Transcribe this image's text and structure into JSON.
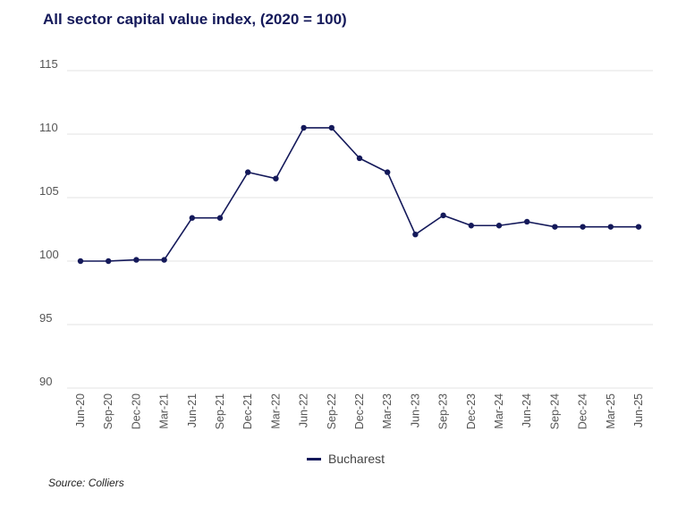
{
  "title": "All sector capital value index, (2020 = 100)",
  "source": "Source: Colliers",
  "chart_data": {
    "type": "line",
    "title": "All sector capital value index, (2020 = 100)",
    "xlabel": "",
    "ylabel": "",
    "ylim": [
      90,
      115
    ],
    "yticks": [
      90,
      95,
      100,
      105,
      110,
      115
    ],
    "grid": true,
    "legend_position": "bottom-center",
    "categories": [
      "Jun-20",
      "Sep-20",
      "Dec-20",
      "Mar-21",
      "Jun-21",
      "Sep-21",
      "Dec-21",
      "Mar-22",
      "Jun-22",
      "Sep-22",
      "Dec-22",
      "Mar-23",
      "Jun-23",
      "Sep-23",
      "Dec-23",
      "Mar-24",
      "Jun-24",
      "Sep-24",
      "Dec-24",
      "Mar-25",
      "Jun-25"
    ],
    "series": [
      {
        "name": "Bucharest",
        "color": "#14195a",
        "values": [
          100.0,
          100.0,
          100.1,
          100.1,
          103.4,
          103.4,
          107.0,
          106.5,
          110.5,
          110.5,
          108.1,
          107.0,
          102.1,
          103.6,
          102.8,
          102.8,
          103.1,
          102.7,
          102.7,
          102.7,
          102.7
        ]
      }
    ]
  }
}
